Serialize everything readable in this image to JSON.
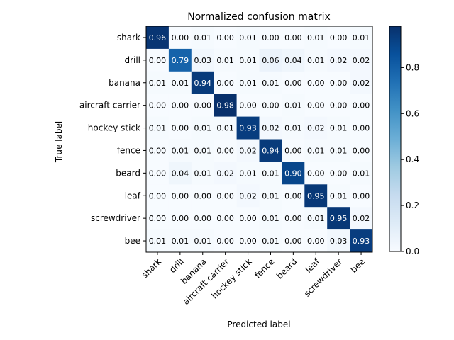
{
  "chart_data": {
    "type": "heatmap",
    "title": "Normalized confusion matrix",
    "xlabel": "Predicted label",
    "ylabel": "True label",
    "classes": [
      "shark",
      "drill",
      "banana",
      "aircraft carrier",
      "hockey stick",
      "fence",
      "beard",
      "leaf",
      "screwdriver",
      "bee"
    ],
    "matrix": [
      [
        0.96,
        0.0,
        0.01,
        0.0,
        0.01,
        0.0,
        0.0,
        0.01,
        0.0,
        0.01
      ],
      [
        0.0,
        0.79,
        0.03,
        0.01,
        0.01,
        0.06,
        0.04,
        0.01,
        0.02,
        0.02
      ],
      [
        0.01,
        0.01,
        0.94,
        0.0,
        0.01,
        0.01,
        0.0,
        0.0,
        0.0,
        0.02
      ],
      [
        0.0,
        0.0,
        0.0,
        0.98,
        0.0,
        0.0,
        0.01,
        0.0,
        0.0,
        0.0
      ],
      [
        0.01,
        0.0,
        0.01,
        0.01,
        0.93,
        0.02,
        0.01,
        0.02,
        0.01,
        0.0
      ],
      [
        0.0,
        0.01,
        0.01,
        0.0,
        0.02,
        0.94,
        0.0,
        0.01,
        0.01,
        0.0
      ],
      [
        0.0,
        0.04,
        0.01,
        0.02,
        0.01,
        0.01,
        0.9,
        0.0,
        0.0,
        0.01
      ],
      [
        0.0,
        0.0,
        0.0,
        0.0,
        0.02,
        0.01,
        0.0,
        0.95,
        0.01,
        0.0
      ],
      [
        0.0,
        0.0,
        0.0,
        0.0,
        0.0,
        0.01,
        0.0,
        0.01,
        0.95,
        0.02
      ],
      [
        0.01,
        0.01,
        0.01,
        0.0,
        0.0,
        0.01,
        0.0,
        0.0,
        0.03,
        0.93
      ]
    ],
    "colormap": "Blues",
    "vmin": 0.0,
    "vmax": 0.98,
    "colorbar_ticks": [
      "0.0",
      "0.2",
      "0.4",
      "0.6",
      "0.8"
    ],
    "colorbar_tick_values": [
      0.0,
      0.2,
      0.4,
      0.6,
      0.8
    ],
    "value_format": "2 decimals",
    "text_color_light": "#ffffff",
    "text_color_dark": "#000000",
    "x_tick_rotation_deg": 45,
    "grid": false
  }
}
